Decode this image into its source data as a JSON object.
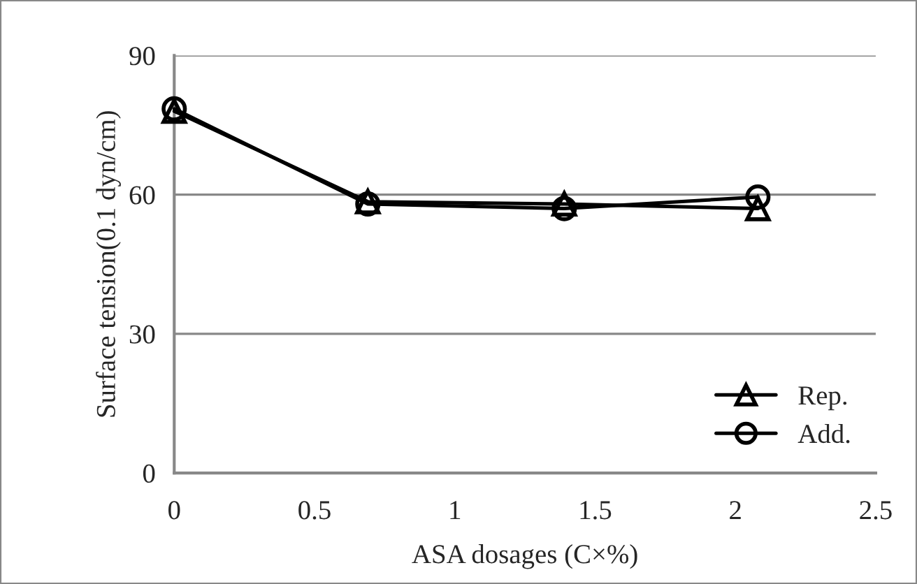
{
  "chart_data": {
    "type": "line",
    "xlabel": "ASA dosages (C×%)",
    "ylabel": "Surface tension(0.1 dyn/cm)",
    "xlim": [
      0,
      2.5
    ],
    "xticks": [
      0,
      0.5,
      1,
      1.5,
      2,
      2.5
    ],
    "ylim": [
      0,
      90
    ],
    "yticks": [
      0,
      30,
      60,
      90
    ],
    "grid": "y",
    "legend": "bottom right",
    "series": [
      {
        "name": "Rep.",
        "color": "#000000",
        "marker": "triangle",
        "x": [
          0,
          0.69,
          1.39,
          2.08
        ],
        "values": [
          78,
          58.5,
          58,
          57
        ]
      },
      {
        "name": "Add.",
        "color": "#000000",
        "marker": "circle",
        "x": [
          0,
          0.69,
          1.39,
          2.08
        ],
        "values": [
          78.5,
          58,
          57,
          59.5
        ]
      }
    ]
  }
}
